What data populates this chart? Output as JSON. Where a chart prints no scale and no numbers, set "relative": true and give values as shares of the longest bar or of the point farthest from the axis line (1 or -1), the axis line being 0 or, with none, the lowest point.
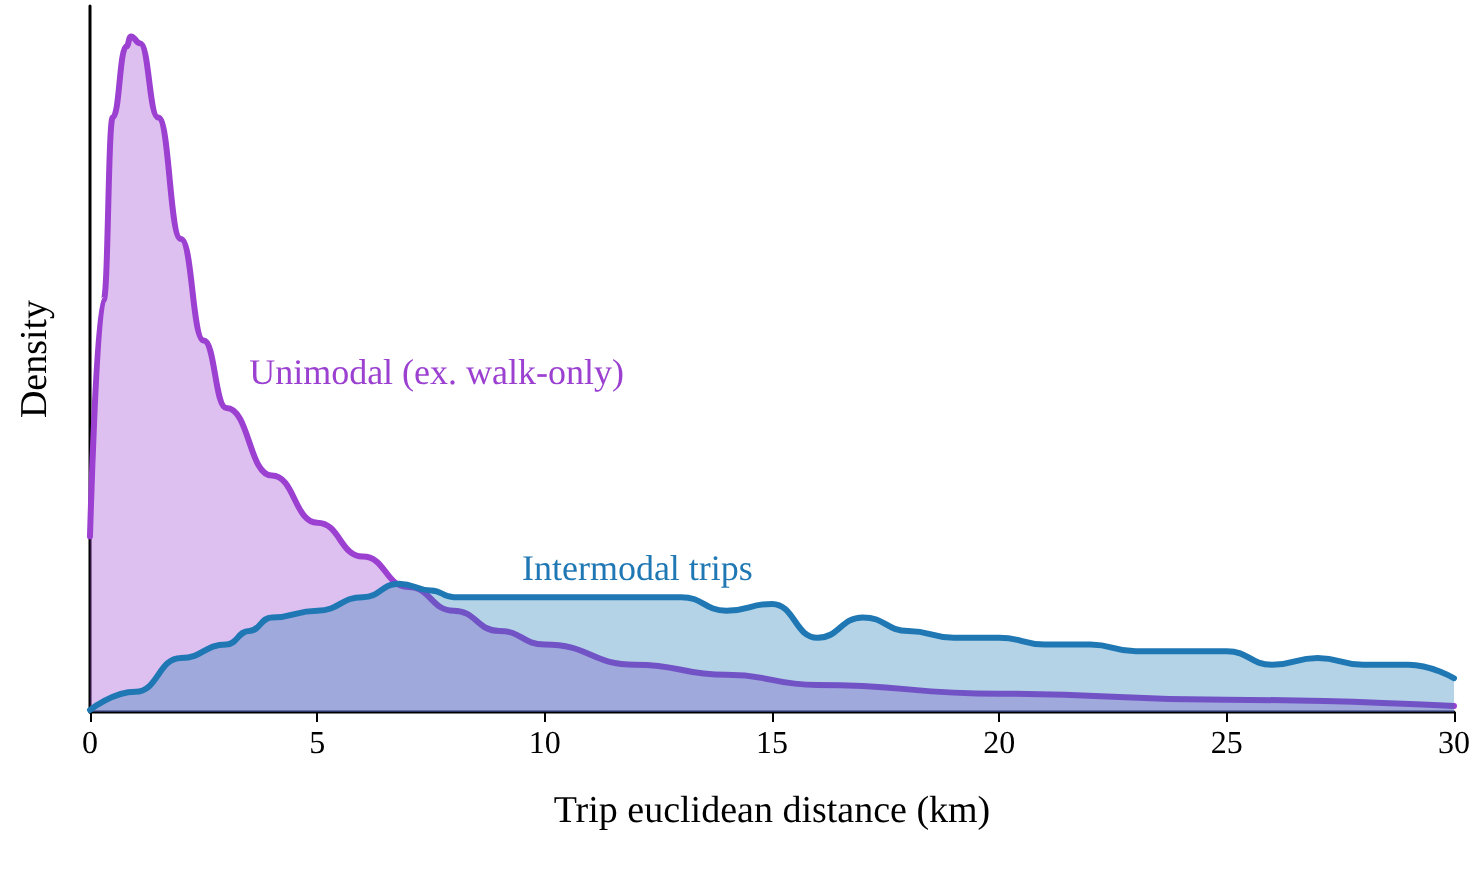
{
  "chart_data": {
    "type": "area",
    "xlabel": "Trip euclidean distance (km)",
    "ylabel": "Density",
    "relative": true,
    "legend": false,
    "grid": false,
    "marker": "none",
    "line_style": "solid",
    "xlim": [
      0,
      30
    ],
    "xticks": [
      0,
      5,
      10,
      15,
      20,
      25,
      30
    ],
    "series": [
      {
        "name": "Unimodal (ex. walk-only)",
        "color": "#9b40d0",
        "x": [
          0,
          0.3,
          0.5,
          0.8,
          0.9,
          1.1,
          1.5,
          2,
          2.5,
          3,
          4,
          5,
          6,
          7,
          8,
          9,
          10,
          12,
          14,
          16,
          20,
          25,
          30
        ],
        "values": [
          0.26,
          0.61,
          0.88,
          0.985,
          1,
          0.99,
          0.88,
          0.7,
          0.55,
          0.45,
          0.35,
          0.28,
          0.23,
          0.185,
          0.15,
          0.12,
          0.1,
          0.07,
          0.055,
          0.04,
          0.027,
          0.018,
          0.009
        ]
      },
      {
        "name": "Intermodal trips",
        "color": "#1f78b4",
        "x": [
          0,
          1,
          2,
          3,
          3.5,
          4,
          5,
          6,
          6.8,
          7.5,
          8,
          9,
          10,
          12,
          13,
          14,
          15,
          16,
          17,
          18,
          19,
          20,
          21,
          22,
          23,
          24,
          25,
          26,
          27,
          28,
          29,
          30
        ],
        "values": [
          0.003,
          0.03,
          0.08,
          0.1,
          0.12,
          0.14,
          0.15,
          0.17,
          0.19,
          0.18,
          0.17,
          0.17,
          0.17,
          0.17,
          0.17,
          0.15,
          0.16,
          0.11,
          0.14,
          0.12,
          0.11,
          0.11,
          0.1,
          0.1,
          0.09,
          0.09,
          0.09,
          0.07,
          0.08,
          0.07,
          0.07,
          0.05
        ]
      }
    ]
  }
}
